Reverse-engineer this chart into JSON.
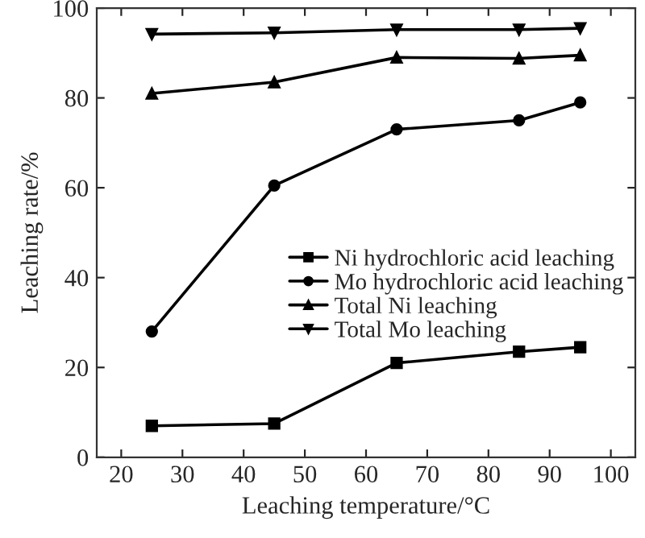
{
  "chart_data": {
    "type": "line",
    "xlabel": "Leaching temperature/°C",
    "ylabel": "Leaching rate/%",
    "x": [
      25,
      45,
      65,
      85,
      95
    ],
    "series": [
      {
        "name": "Ni hydrochloric acid leaching",
        "color": "#000000",
        "marker": "square",
        "values": [
          7,
          7.5,
          21,
          23.5,
          24.5
        ]
      },
      {
        "name": "Mo hydrochloric acid leaching",
        "color": "#000000",
        "marker": "circle",
        "values": [
          28,
          60.5,
          73,
          75,
          79
        ]
      },
      {
        "name": "Total Ni leaching",
        "color": "#000000",
        "marker": "triangle",
        "values": [
          81,
          83.5,
          89,
          88.8,
          89.5
        ]
      },
      {
        "name": "Total Mo leaching",
        "color": "#000000",
        "marker": "triangle_down",
        "values": [
          94.2,
          94.5,
          95.2,
          95.2,
          95.5
        ]
      }
    ],
    "xlim": [
      16,
      104
    ],
    "ylim": [
      0,
      100
    ],
    "xticks": [
      20,
      30,
      40,
      50,
      60,
      70,
      80,
      90,
      100
    ],
    "yticks": [
      0,
      20,
      40,
      60,
      80,
      100
    ],
    "grid": false,
    "legend": "right",
    "line_style": "solid"
  }
}
